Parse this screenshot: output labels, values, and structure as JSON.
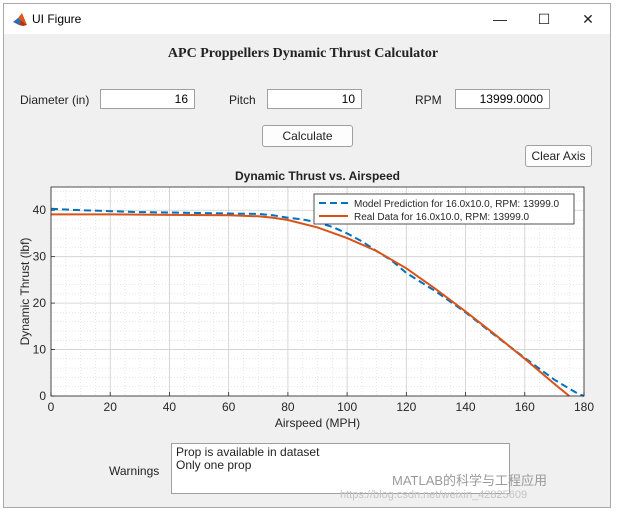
{
  "window": {
    "title": "UI Figure",
    "minimize_glyph": "—",
    "maximize_glyph": "☐",
    "close_glyph": "✕",
    "icon": "matlab-logo-icon"
  },
  "heading": "APC Proppellers Dynamic Thrust Calculator",
  "inputs": {
    "diameter": {
      "label": "Diameter (in)",
      "value": "16"
    },
    "pitch": {
      "label": "Pitch",
      "value": "10"
    },
    "rpm": {
      "label": "RPM",
      "value": "13999.0000"
    }
  },
  "buttons": {
    "calculate": "Calculate",
    "clear_axis": "Clear Axis"
  },
  "warnings": {
    "label": "Warnings",
    "lines": [
      "Prop is available in dataset",
      "Only one prop"
    ]
  },
  "watermark": {
    "text": "MATLAB的科学与工程应用",
    "url": "https://blog.csdn.net/weixin_42825609"
  },
  "chart_data": {
    "type": "line",
    "title": "Dynamic Thrust vs. Airspeed",
    "xlabel": "Airspeed (MPH)",
    "ylabel": "Dynamic Thrust (lbf)",
    "xlim": [
      0,
      180
    ],
    "ylim": [
      0,
      45
    ],
    "xticks": [
      0,
      20,
      40,
      60,
      80,
      100,
      120,
      140,
      160,
      180
    ],
    "yticks": [
      0,
      10,
      20,
      30,
      40
    ],
    "grid": true,
    "minor_grid": true,
    "legend_position": "top-right",
    "series": [
      {
        "name": "Model Prediction for 16.0x10.0, RPM: 13999.0",
        "color": "#0072BD",
        "style": "dashed",
        "x": [
          0,
          10,
          20,
          30,
          40,
          50,
          60,
          70,
          75,
          80,
          85,
          90,
          95,
          100,
          105,
          110,
          115,
          120,
          130,
          140,
          150,
          160,
          170,
          175,
          178,
          180
        ],
        "y": [
          40.3,
          40.0,
          39.8,
          39.6,
          39.5,
          39.4,
          39.3,
          39.2,
          38.9,
          38.4,
          38.0,
          37.4,
          36.4,
          35.0,
          33.3,
          31.2,
          29.2,
          26.5,
          22.5,
          18.0,
          13.0,
          8.2,
          3.5,
          1.6,
          0.5,
          0.0
        ]
      },
      {
        "name": "Real Data for 16.0x10.0, RPM: 13999.0",
        "color": "#D95319",
        "style": "solid",
        "x": [
          0,
          20,
          40,
          60,
          70,
          75,
          80,
          90,
          100,
          110,
          120,
          130,
          140,
          150,
          160,
          170,
          175
        ],
        "y": [
          39.1,
          39.1,
          39.0,
          38.9,
          38.7,
          38.4,
          37.9,
          36.3,
          34.0,
          31.2,
          27.5,
          23.0,
          18.2,
          13.2,
          8.0,
          2.6,
          0.0
        ]
      }
    ]
  }
}
